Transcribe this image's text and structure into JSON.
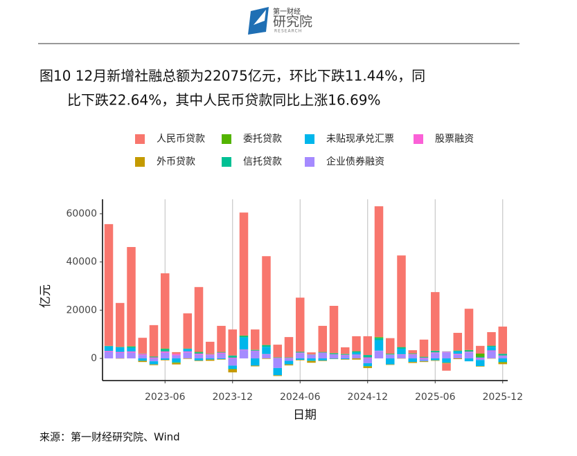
{
  "header": {
    "logo_top": "第一财经",
    "logo_main": "研究院",
    "logo_sub": "RESEARCH"
  },
  "chart_data": {
    "type": "stacked-bar",
    "title": [
      "图10 12月新增社融总额为22075亿元，环比下跌11.44%，同",
      "比下跌22.64%，其中人民币贷款同比上涨16.69%"
    ],
    "x_label": "日期",
    "y_label": "亿元",
    "x": [
      "2023-01",
      "2023-02",
      "2023-03",
      "2023-04",
      "2023-05",
      "2023-06",
      "2023-07",
      "2023-08",
      "2023-09",
      "2023-10",
      "2023-11",
      "2023-12",
      "2024-01",
      "2024-02",
      "2024-03",
      "2024-04",
      "2024-05",
      "2024-06",
      "2024-07",
      "2024-08",
      "2024-09",
      "2024-10",
      "2024-11",
      "2024-12",
      "2025-01",
      "2025-02",
      "2025-03",
      "2025-04",
      "2025-05",
      "2025-06",
      "2025-07",
      "2025-08",
      "2025-09",
      "2025-10",
      "2025-11",
      "2025-12"
    ],
    "xticks": [
      "2023-06",
      "2023-12",
      "2024-06",
      "2024-12",
      "2025-06",
      "2025-12"
    ],
    "ylim": [
      -9200,
      66000
    ],
    "yticks": [
      0,
      20000,
      40000,
      60000
    ],
    "grid": true,
    "series": [
      {
        "name": "人民币贷款",
        "color": "#F8766D",
        "values": [
          50500,
          18200,
          41100,
          6500,
          13000,
          31200,
          700,
          14600,
          26900,
          5000,
          10800,
          10800,
          51000,
          8400,
          36800,
          5250,
          8400,
          22400,
          800,
          10800,
          19600,
          2700,
          6200,
          7800,
          54200,
          6400,
          38000,
          1300,
          7100,
          24300,
          -3000,
          7300,
          17100,
          3200,
          5600,
          11300
        ]
      },
      {
        "name": "外币贷款",
        "color": "#C49A00",
        "values": [
          0,
          -100,
          100,
          -500,
          -300,
          -200,
          -600,
          -200,
          -200,
          -500,
          -200,
          -1200,
          0,
          -300,
          -200,
          -300,
          -400,
          -200,
          -700,
          -200,
          -100,
          -200,
          -500,
          -600,
          100,
          -200,
          -100,
          -400,
          -300,
          -200,
          -200,
          -300,
          0,
          -200,
          -100,
          -600
        ]
      },
      {
        "name": "委托贷款",
        "color": "#53B400",
        "values": [
          100,
          100,
          100,
          50,
          100,
          200,
          -100,
          100,
          200,
          100,
          100,
          -200,
          200,
          100,
          100,
          50,
          50,
          100,
          -100,
          100,
          100,
          100,
          100,
          -200,
          300,
          100,
          100,
          100,
          100,
          100,
          -100,
          100,
          200,
          1300,
          100,
          -300
        ]
      },
      {
        "name": "信托贷款",
        "color": "#00C094",
        "values": [
          100,
          100,
          500,
          100,
          300,
          1000,
          -300,
          100,
          500,
          100,
          200,
          900,
          600,
          300,
          700,
          200,
          200,
          300,
          100,
          200,
          400,
          300,
          500,
          1000,
          900,
          300,
          600,
          200,
          300,
          600,
          100,
          300,
          500,
          400,
          400,
          700
        ]
      },
      {
        "name": "未贴现承兑汇票",
        "color": "#00B6EB",
        "values": [
          1900,
          1900,
          1500,
          -1000,
          -1300,
          -600,
          -1500,
          1000,
          -900,
          -500,
          -300,
          -1400,
          5000,
          -3000,
          3000,
          -3000,
          -1500,
          -600,
          -1000,
          -900,
          -200,
          -300,
          800,
          -1200,
          4400,
          -2500,
          2300,
          -1500,
          -200,
          -800,
          -1800,
          1000,
          -1200,
          -2500,
          1500,
          -1500
        ]
      },
      {
        "name": "股票融资",
        "color": "#FB61D7",
        "values": [
          400,
          400,
          500,
          500,
          400,
          500,
          600,
          400,
          400,
          300,
          400,
          300,
          200,
          200,
          200,
          200,
          200,
          200,
          100,
          100,
          100,
          200,
          200,
          400,
          100,
          100,
          200,
          300,
          300,
          300,
          300,
          400,
          300,
          300,
          300,
          200
        ]
      },
      {
        "name": "企业债券融资",
        "color": "#A58AFF",
        "values": [
          2700,
          2300,
          2400,
          1400,
          -1200,
          2400,
          1300,
          2500,
          1600,
          1400,
          2000,
          -3000,
          3500,
          3000,
          1600,
          -4000,
          -1000,
          2200,
          1500,
          2300,
          1600,
          1300,
          1400,
          -2000,
          3100,
          1500,
          1500,
          1500,
          -1000,
          2200,
          2500,
          1500,
          2500,
          -700,
          3000,
          1000
        ]
      }
    ]
  },
  "source": "来源：第一财经研究院、Wind"
}
